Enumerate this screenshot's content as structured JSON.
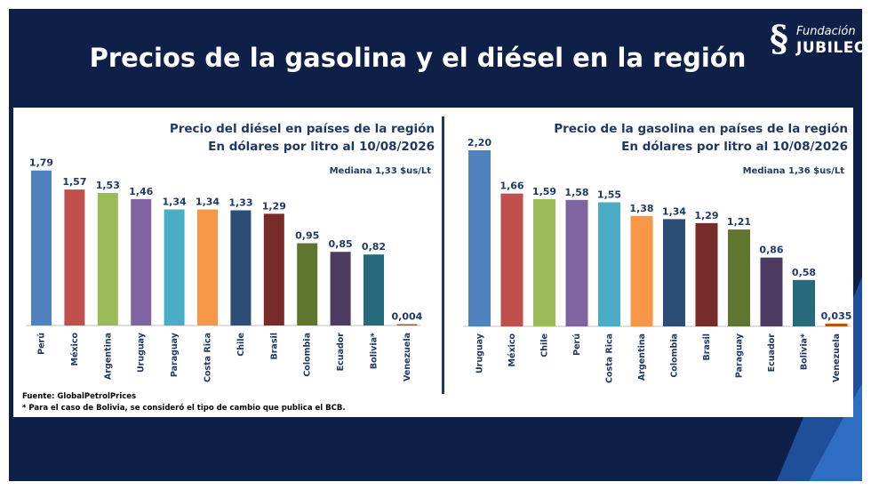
{
  "slide": {
    "title": "Precios de la gasolina y el diésel en la región",
    "logo": {
      "line1": "Fundación",
      "line2": "JUBILEO"
    }
  },
  "footnotes": {
    "source": "Fuente: GlobalPetrolPrices",
    "note": "* Para el caso de Bolivia, se consideró el tipo de cambio que publica el BCB."
  },
  "chart_data": [
    {
      "type": "bar",
      "title": "Precio del diésel en países de la región",
      "subtitle": "En dólares por litro al 10/08/2026",
      "annotation": "Mediana 1,33 $us/Lt",
      "categories": [
        "Perú",
        "México",
        "Argentina",
        "Uruguay",
        "Paraguay",
        "Costa Rica",
        "Chile",
        "Brasil",
        "Colombia",
        "Ecuador",
        "Bolivia*",
        "Venezuela"
      ],
      "values": [
        1.79,
        1.57,
        1.53,
        1.46,
        1.34,
        1.34,
        1.33,
        1.29,
        0.95,
        0.85,
        0.82,
        0.004
      ],
      "labels": [
        "1,79",
        "1,57",
        "1,53",
        "1,46",
        "1,34",
        "1,34",
        "1,33",
        "1,29",
        "0,95",
        "0,85",
        "0,82",
        "0,004"
      ],
      "colors": [
        "#4f81bd",
        "#c0504d",
        "#9bbb59",
        "#8064a2",
        "#4bacc6",
        "#f79646",
        "#2c4d75",
        "#772c2a",
        "#5f7530",
        "#4d3b62",
        "#276a7c",
        "#b65708"
      ],
      "ylim": [
        0,
        1.9
      ],
      "grid": false
    },
    {
      "type": "bar",
      "title": "Precio de la gasolina en países de la región",
      "subtitle": "En dólares por litro al 10/08/2026",
      "annotation": "Mediana 1,36 $us/Lt",
      "categories": [
        "Uruguay",
        "México",
        "Chile",
        "Perú",
        "Costa Rica",
        "Argentina",
        "Colombia",
        "Brasil",
        "Paraguay",
        "Ecuador",
        "Bolivia*",
        "Venezuela"
      ],
      "values": [
        2.2,
        1.66,
        1.59,
        1.58,
        1.55,
        1.38,
        1.34,
        1.29,
        1.21,
        0.86,
        0.58,
        0.035
      ],
      "labels": [
        "2,20",
        "1,66",
        "1,59",
        "1,58",
        "1,55",
        "1,38",
        "1,34",
        "1,29",
        "1,21",
        "0,86",
        "0,58",
        "0,035"
      ],
      "colors": [
        "#4f81bd",
        "#c0504d",
        "#9bbb59",
        "#8064a2",
        "#4bacc6",
        "#f79646",
        "#2c4d75",
        "#772c2a",
        "#5f7530",
        "#4d3b62",
        "#276a7c",
        "#b65708"
      ],
      "ylim": [
        0,
        2.2
      ],
      "grid": false
    }
  ]
}
